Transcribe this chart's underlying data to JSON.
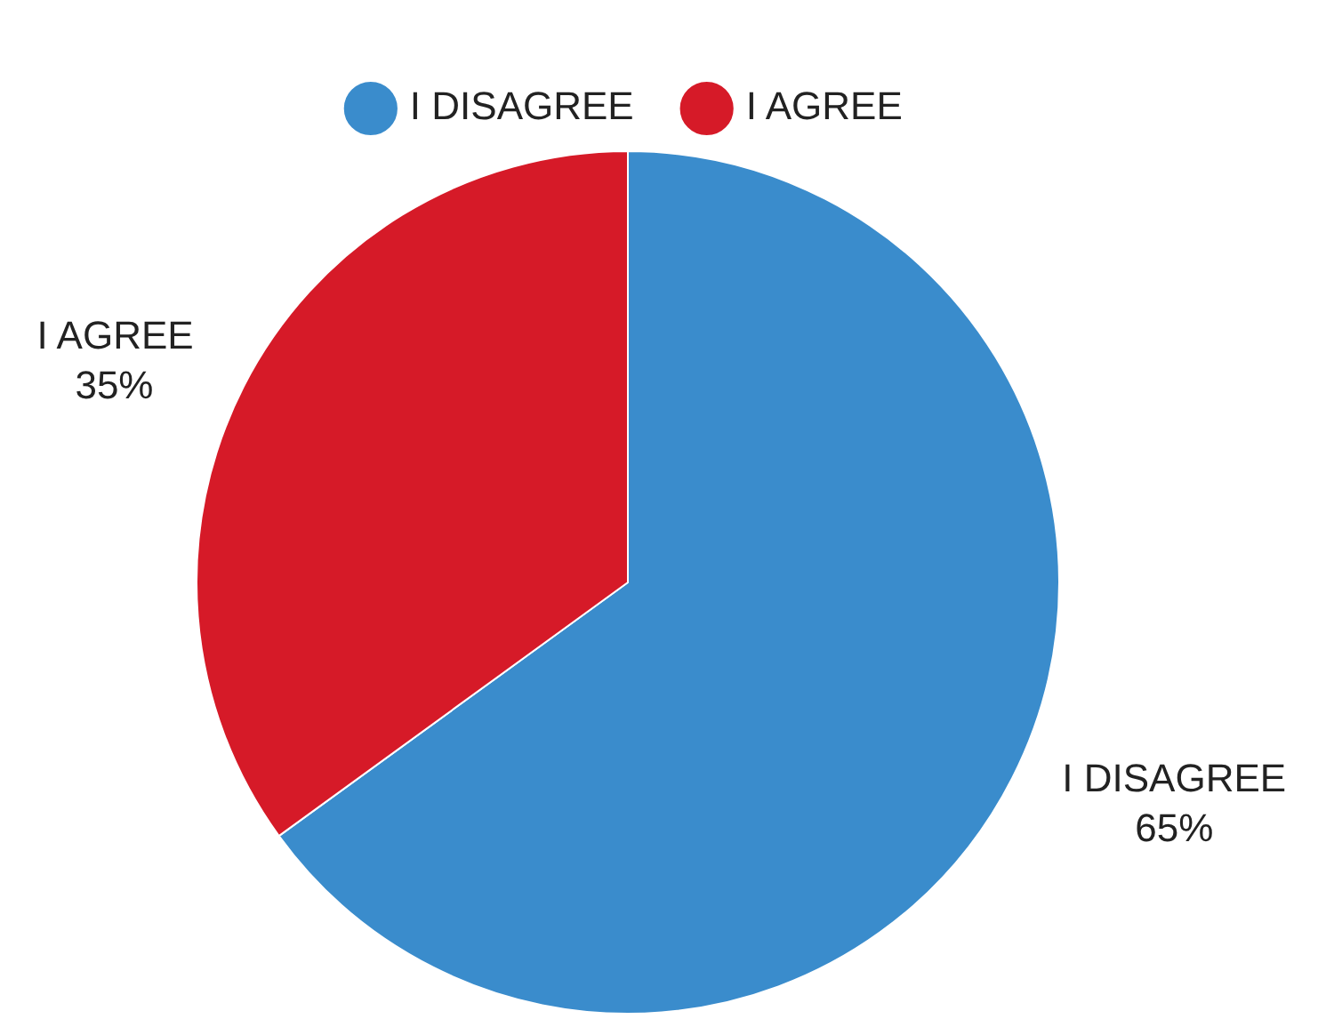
{
  "chart_data": {
    "type": "pie",
    "categories": [
      "I DISAGREE",
      "I AGREE"
    ],
    "values": [
      65,
      35
    ],
    "colors": [
      "#3a8ccc",
      "#d61a28"
    ],
    "legend": "top",
    "value_labels": [
      "65%",
      "35%"
    ]
  }
}
